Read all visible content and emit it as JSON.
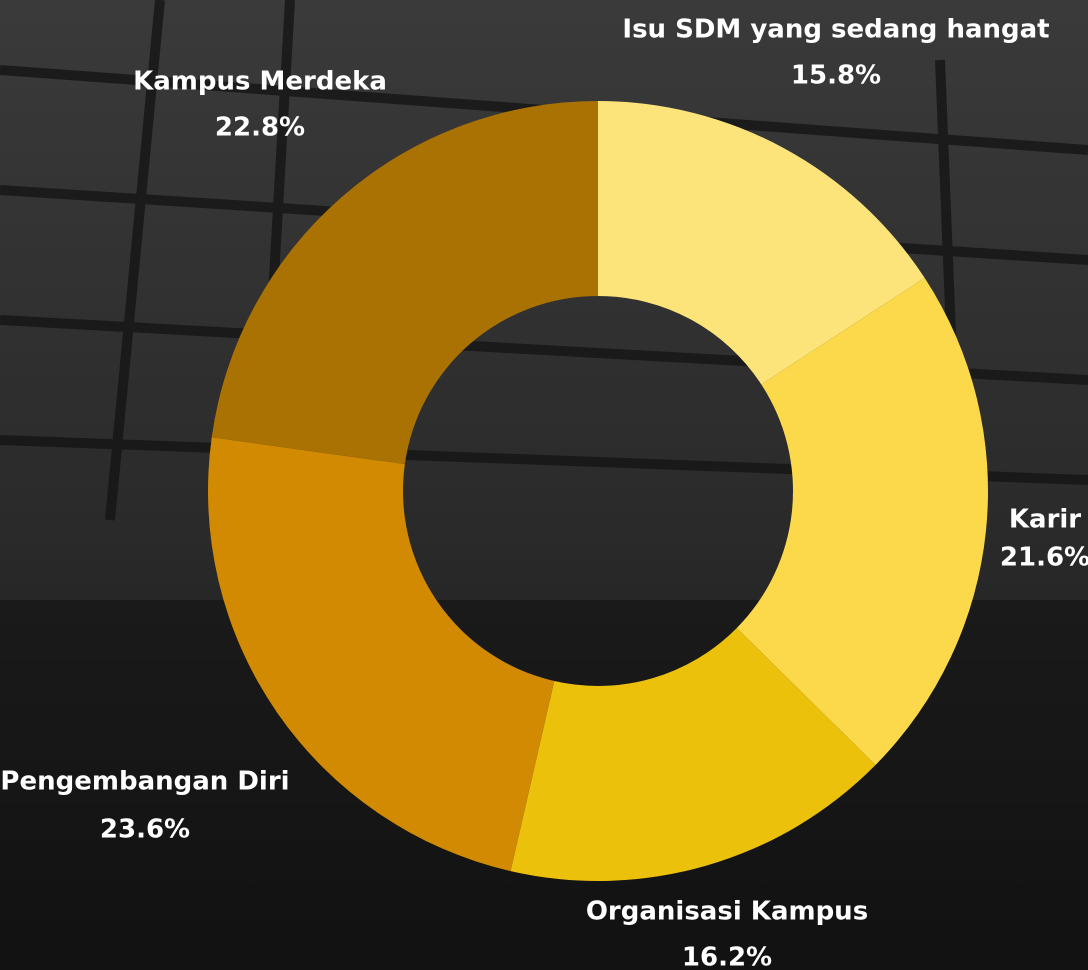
{
  "chart_data": {
    "type": "pie",
    "categories": [
      "Isu SDM yang sedang hangat",
      "Karir",
      "Organisasi Kampus",
      "Pengembangan Diri",
      "Kampus Merdeka"
    ],
    "values": [
      15.8,
      21.6,
      16.2,
      23.6,
      22.8
    ],
    "value_labels": [
      "15.8%",
      "21.6%",
      "16.2%",
      "23.6%",
      "22.8%"
    ],
    "colors": [
      "#fde47a",
      "#fcd94a",
      "#ecc10c",
      "#d18a02",
      "#a97203"
    ]
  }
}
